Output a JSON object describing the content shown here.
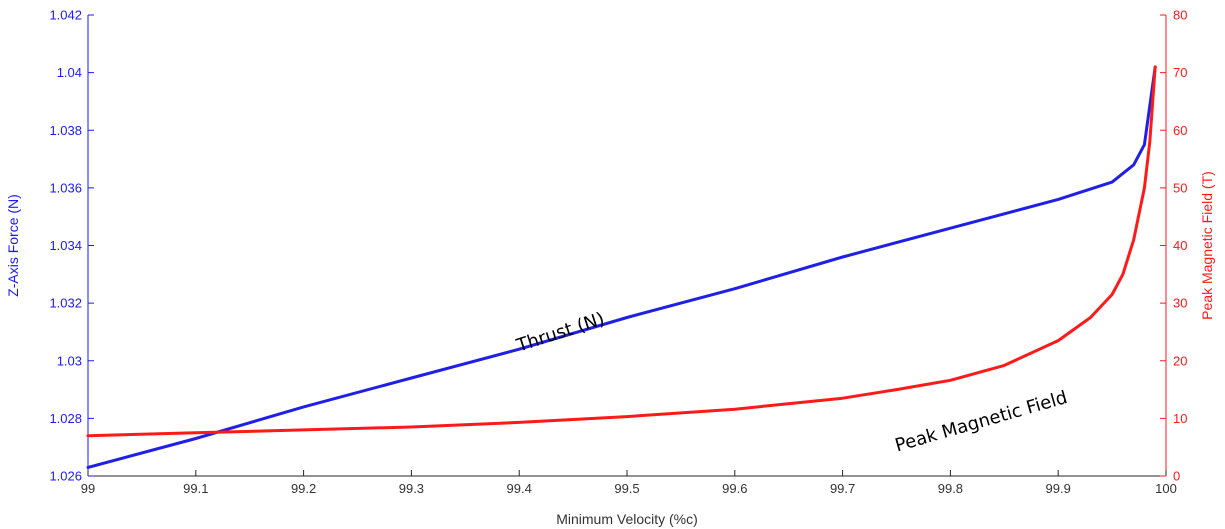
{
  "chart_data": {
    "type": "line",
    "title": "",
    "xlabel": "Minimum Velocity (%c)",
    "ylabel_left": "Z-Axis Force (N)",
    "ylabel_right": "Peak Magnetic Field (T)",
    "xlim": [
      99,
      100
    ],
    "ylim_left": [
      1.026,
      1.042
    ],
    "ylim_right": [
      0,
      80
    ],
    "x_ticks": [
      "99",
      "99.1",
      "99.2",
      "99.3",
      "99.4",
      "99.5",
      "99.6",
      "99.7",
      "99.8",
      "99.9",
      "100"
    ],
    "y_left_ticks": [
      "1.026",
      "1.028",
      "1.03",
      "1.032",
      "1.034",
      "1.036",
      "1.038",
      "1.04",
      "1.042"
    ],
    "y_right_ticks": [
      "0",
      "10",
      "20",
      "30",
      "40",
      "50",
      "60",
      "70",
      "80"
    ],
    "grid": false,
    "colors": {
      "left_axis": "#1a1aff",
      "right_axis": "#ff1a1a",
      "thrust": "#1f1fe6",
      "field": "#ff1a1a"
    },
    "series": [
      {
        "name": "Thrust (N)",
        "axis": "left",
        "x": [
          99,
          99.1,
          99.2,
          99.3,
          99.4,
          99.5,
          99.6,
          99.7,
          99.8,
          99.9,
          99.95,
          99.97,
          99.98,
          99.99
        ],
        "y": [
          1.0263,
          1.0273,
          1.0284,
          1.0294,
          1.0304,
          1.0315,
          1.0325,
          1.0336,
          1.0346,
          1.0356,
          1.0362,
          1.0368,
          1.0375,
          1.0402
        ]
      },
      {
        "name": "Peak Magnetic Field",
        "axis": "right",
        "x": [
          99,
          99.1,
          99.2,
          99.3,
          99.4,
          99.5,
          99.6,
          99.7,
          99.75,
          99.8,
          99.85,
          99.9,
          99.93,
          99.95,
          99.96,
          99.97,
          99.98,
          99.985,
          99.99
        ],
        "y": [
          7.0,
          7.5,
          8.0,
          8.5,
          9.3,
          10.3,
          11.6,
          13.5,
          15.0,
          16.6,
          19.2,
          23.5,
          27.5,
          31.5,
          35.0,
          41.0,
          50.0,
          58.0,
          71.0
        ]
      }
    ],
    "annotations": [
      {
        "text": "Thrust (N)",
        "series": "Thrust (N)",
        "x": 99.44,
        "y": 1.0308,
        "rotate": -18
      },
      {
        "text": "Peak Magnetic Field",
        "series": "Peak Magnetic Field",
        "x": 99.83,
        "y_right": 8.5,
        "rotate": -16
      }
    ]
  }
}
